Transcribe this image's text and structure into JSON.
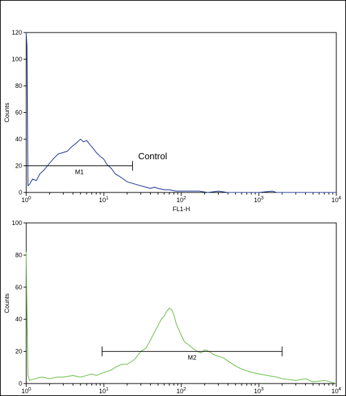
{
  "chart_data": [
    {
      "type": "line",
      "xscale": "log",
      "xlim": [
        1,
        10000
      ],
      "ylim": [
        0,
        120
      ],
      "yticks": [
        0,
        20,
        40,
        60,
        80,
        100,
        120
      ],
      "x_tick_labels": [
        {
          "base": "10",
          "exp": "0"
        },
        {
          "base": "10",
          "exp": "1"
        },
        {
          "base": "10",
          "exp": "2"
        },
        {
          "base": "10",
          "exp": "3"
        },
        {
          "base": "10",
          "exp": "4"
        }
      ],
      "xlabel": "FL1-H",
      "ylabel": "Counts",
      "color": "#1f3a93",
      "series": [
        {
          "name": "Control",
          "x": [
            1,
            1.02,
            1.05,
            1.1,
            1.2,
            1.35,
            1.5,
            1.7,
            2.0,
            2.3,
            2.6,
            3.0,
            3.4,
            3.8,
            4.2,
            4.6,
            5.0,
            5.5,
            6.0,
            6.6,
            7.3,
            8.0,
            9.0,
            10,
            11,
            12.5,
            14,
            16,
            18,
            20,
            23,
            26,
            30,
            35,
            40,
            45,
            50,
            60,
            70,
            85,
            100,
            130,
            170,
            220,
            300,
            400,
            600,
            1000,
            1500,
            1700,
            2000,
            4000,
            10000
          ],
          "y": [
            120,
            110,
            5,
            6,
            10,
            9,
            14,
            17,
            22,
            26,
            29,
            30,
            31,
            34,
            36,
            38,
            40,
            38,
            39,
            36,
            33,
            30,
            27,
            25,
            21,
            18,
            14,
            12,
            10,
            8,
            7,
            6,
            5,
            4,
            3,
            4,
            3,
            2,
            2,
            1,
            1,
            1,
            1,
            0,
            1,
            0,
            0,
            0,
            1,
            0,
            0,
            0,
            0
          ]
        }
      ],
      "markers": [
        {
          "label": "M1",
          "x1": 1,
          "x2": 23.5,
          "y": 20
        }
      ],
      "annotations": [
        {
          "text": "Control",
          "x": 25,
          "y": 25
        }
      ]
    },
    {
      "type": "line",
      "xscale": "log",
      "xlim": [
        1,
        10000
      ],
      "ylim": [
        0,
        100
      ],
      "yticks": [
        0,
        20,
        40,
        60,
        80,
        100
      ],
      "x_tick_labels": [
        {
          "base": "10",
          "exp": "0"
        },
        {
          "base": "10",
          "exp": "1"
        },
        {
          "base": "10",
          "exp": "2"
        },
        {
          "base": "10",
          "exp": "3"
        },
        {
          "base": "10",
          "exp": "4"
        }
      ],
      "ylabel": "Counts",
      "color": "#6cc04a",
      "series": [
        {
          "x": [
            1,
            1.02,
            1.05,
            1.1,
            1.3,
            1.6,
            2,
            2.5,
            3,
            4,
            5,
            6,
            7,
            8,
            9,
            10,
            12,
            14,
            17,
            20,
            25,
            30,
            35,
            40,
            45,
            50,
            55,
            60,
            65,
            70,
            75,
            80,
            85,
            90,
            100,
            110,
            125,
            140,
            160,
            180,
            200,
            230,
            260,
            300,
            350,
            400,
            500,
            600,
            800,
            1000,
            1300,
            1700,
            2000,
            3000,
            4000,
            5000,
            7000,
            10000
          ],
          "y": [
            82,
            45,
            5,
            2,
            3,
            4,
            3,
            4,
            4,
            5,
            4,
            5,
            6,
            5,
            6,
            7,
            8,
            10,
            12,
            12,
            15,
            20,
            22,
            27,
            32,
            36,
            40,
            42,
            45,
            47,
            46,
            43,
            38,
            35,
            30,
            26,
            24,
            22,
            20,
            19,
            21,
            20,
            18,
            17,
            16,
            14,
            11,
            9,
            7,
            6,
            5,
            4,
            3,
            2,
            3,
            1,
            2,
            0
          ]
        }
      ],
      "markers": [
        {
          "label": "M2",
          "x1": 9.5,
          "x2": 2000,
          "y": 20
        }
      ]
    }
  ]
}
